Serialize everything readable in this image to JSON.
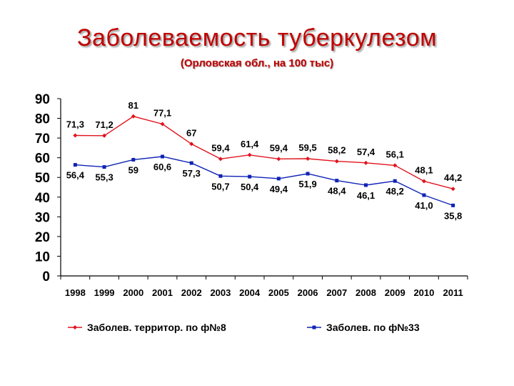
{
  "chart_data": {
    "type": "line",
    "title": "Заболеваемость туберкулезом",
    "subtitle": "(Орловская обл., на 100 тыс)",
    "xlabel": "",
    "ylabel": "",
    "ylim": [
      0,
      90
    ],
    "yticks": [
      "0",
      "10",
      "20",
      "30",
      "40",
      "50",
      "60",
      "70",
      "80",
      "90"
    ],
    "categories": [
      "1998",
      "1999",
      "2000",
      "2001",
      "2002",
      "2003",
      "2004",
      "2005",
      "2006",
      "2007",
      "2008",
      "2009",
      "2010",
      "2011"
    ],
    "legend_position": "bottom",
    "grid": false,
    "series": [
      {
        "name": "Заболев. территор. по ф№8",
        "color": "#e0141e",
        "marker": "diamond",
        "values": [
          71.3,
          71.2,
          81,
          77.1,
          67,
          59.4,
          61.4,
          59.4,
          59.5,
          58.2,
          57.4,
          56.1,
          48.1,
          44.2
        ],
        "labels": [
          "71,3",
          "71,2",
          "81",
          "77,1",
          "67",
          "59,4",
          "61,4",
          "59,4",
          "59,5",
          "58,2",
          "57,4",
          "56,1",
          "48,1",
          "44,2"
        ]
      },
      {
        "name": "Заболев. по ф№33",
        "color": "#0f23b4",
        "marker": "square",
        "values": [
          56.4,
          55.3,
          59,
          60.6,
          57.3,
          50.7,
          50.4,
          49.4,
          51.9,
          48.4,
          46.1,
          48.2,
          41.0,
          35.8
        ],
        "labels": [
          "56,4",
          "55,3",
          "59",
          "60,6",
          "57,3",
          "50,7",
          "50,4",
          "49,4",
          "51,9",
          "48,4",
          "46,1",
          "48,2",
          "41,0",
          "35,8"
        ]
      }
    ]
  }
}
